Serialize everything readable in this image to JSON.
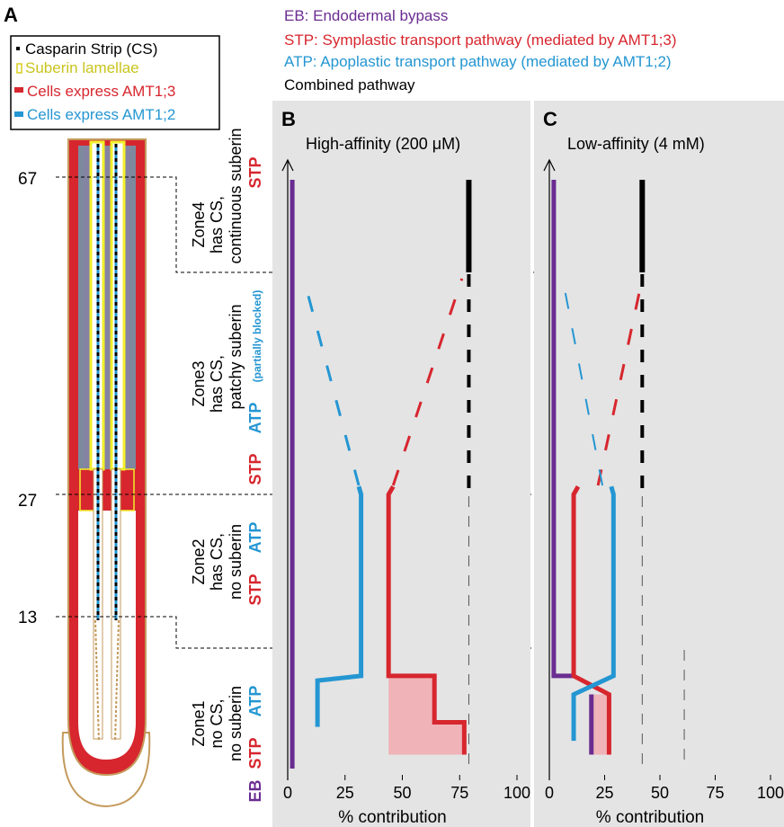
{
  "panel_labels": {
    "a": "A",
    "b": "B",
    "c": "C"
  },
  "legend_top": {
    "eb": "EB: Endodermal bypass",
    "stp": "STP: Symplastic transport pathway (mediated by AMT1;3)",
    "atp": "ATP: Apoplastic transport pathway (mediated by AMT1;2)",
    "combined": "Combined pathway"
  },
  "legend_a": {
    "cs": "Casparin Strip (CS)",
    "suberin": "Suberin lamellae",
    "amt13": "Cells express AMT1;3",
    "amt12": "Cells express AMT1;2"
  },
  "depth_labels": {
    "d67": "67",
    "d27": "27",
    "d13": "13"
  },
  "zones": {
    "zone4": {
      "l1": "Zone4",
      "l2": "has CS,",
      "l3": "continuous suberin",
      "stp": "STP"
    },
    "zone3": {
      "l1": "Zone3",
      "l2": "has CS,",
      "l3": "patchy suberin",
      "stp": "STP",
      "atp": "ATP",
      "atp_note": "(partially blocked)"
    },
    "zone2": {
      "l1": "Zone2",
      "l2": "has CS,",
      "l3": "no suberin",
      "stp": "STP",
      "atp": "ATP"
    },
    "zone1": {
      "l1": "Zone1",
      "l2": "no CS,",
      "l3": "no suberin",
      "eb": "EB",
      "stp": "STP",
      "atp": "ATP"
    }
  },
  "colors": {
    "eb": "#6a2c91",
    "stp": "#d7262e",
    "atp": "#2496d2",
    "combined": "#000000",
    "panel_bg": "#e4e4e4",
    "suberin": "#f3ef2a",
    "root_outline": "#c49a5c",
    "stele": "#7d8a9e",
    "shade": "#efb3b8"
  },
  "chart_data": [
    {
      "type": "line",
      "title": "High-affinity (200 μM)",
      "xlabel": "% contribution",
      "xlim": [
        0,
        100
      ],
      "xticks": [
        "0",
        "25",
        "50",
        "75",
        "100"
      ],
      "series": [
        {
          "key": "eb",
          "segments": [
            {
              "x": [
                2,
                2
              ],
              "y": [
                0,
                67
              ]
            }
          ]
        },
        {
          "key": "stp",
          "segments": [
            {
              "x": [
                77,
                77,
                64,
                64,
                44,
                44,
                46
              ],
              "y": [
                1.5,
                5,
                5,
                10,
                10,
                27,
                28
              ]
            }
          ],
          "dashed_zone3": [
            46,
            76
          ]
        },
        {
          "key": "atp",
          "segments": [
            {
              "x": [
                13,
                13,
                32,
                32,
                31
              ],
              "y": [
                4.5,
                9.5,
                10,
                27,
                28
              ]
            }
          ],
          "dashed_zone3": [
            31,
            7
          ]
        },
        {
          "key": "combined",
          "zone4": 79,
          "zone3": 79,
          "zone12": 79
        }
      ],
      "shaded": {
        "x0": 44,
        "y0": 1.5,
        "y1": 10,
        "stp": [
          [
            1.5,
            77
          ],
          [
            5,
            77
          ],
          [
            5,
            64
          ],
          [
            10,
            64
          ]
        ]
      }
    },
    {
      "type": "line",
      "title": "Low-affinity (4 mM)",
      "xlabel": "% contribution",
      "xlim": [
        0,
        100
      ],
      "xticks": [
        "0",
        "25",
        "50",
        "75",
        "100"
      ],
      "series": [
        {
          "key": "eb",
          "segments": [
            {
              "x": [
                2,
                2,
                12
              ],
              "y": [
                67,
                10,
                10
              ]
            },
            {
              "x": [
                19,
                19
              ],
              "y": [
                1.5,
                8
              ]
            }
          ]
        },
        {
          "key": "stp",
          "segments": [
            {
              "x": [
                27,
                27,
                11,
                11,
                13
              ],
              "y": [
                1.5,
                8,
                10,
                27,
                28
              ]
            }
          ],
          "dashed_zone3": [
            22,
            42
          ]
        },
        {
          "key": "atp",
          "segments": [
            {
              "x": [
                11,
                11,
                29,
                29,
                28
              ],
              "y": [
                3,
                8,
                10,
                27,
                28
              ]
            }
          ],
          "dashed_zone3": [
            24,
            6
          ]
        },
        {
          "key": "combined",
          "zone4": 42,
          "zone3": 42,
          "zone12": 42,
          "zone1": 61
        }
      ],
      "shaded": {
        "x0": 19,
        "x1": 27,
        "y0": 1.5,
        "y1": 8
      }
    }
  ]
}
